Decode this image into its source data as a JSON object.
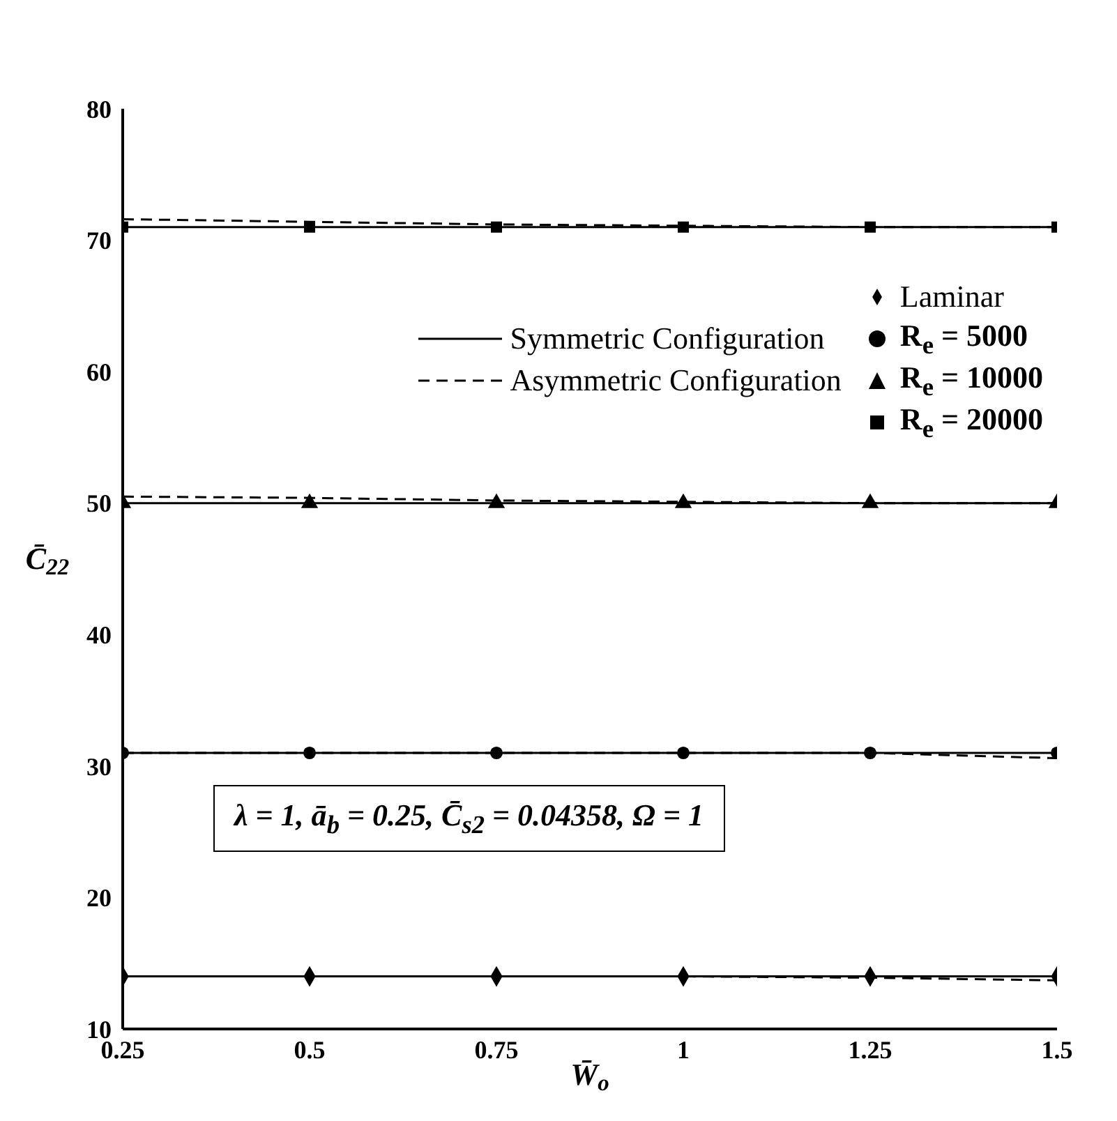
{
  "chart_data": {
    "type": "line",
    "xlabel": "W̄$_{o}$",
    "ylabel": "C̄$_{22}$",
    "x": [
      0.25,
      0.5,
      0.75,
      1,
      1.25,
      1.5
    ],
    "xlim": [
      0.25,
      1.5
    ],
    "xticks": [
      0.25,
      0.5,
      0.75,
      1,
      1.25,
      1.5
    ],
    "ylim": [
      10,
      80
    ],
    "yticks": [
      10,
      20,
      30,
      40,
      50,
      60,
      70,
      80
    ],
    "grid": false,
    "legend": "top right",
    "series": [
      {
        "name": "Symmetric Configuration",
        "color": "#000000",
        "line_style": "solid",
        "values": [
          14,
          14,
          14,
          14,
          14,
          14
        ]
      },
      {
        "color": "#000000",
        "line_style": "solid",
        "values": [
          31,
          31,
          31,
          31,
          31,
          31
        ]
      },
      {
        "color": "#000000",
        "line_style": "solid",
        "values": [
          50,
          50,
          50,
          50,
          50,
          50
        ]
      },
      {
        "color": "#000000",
        "line_style": "solid",
        "values": [
          71,
          71,
          71,
          71,
          71,
          71
        ]
      },
      {
        "name": "Asymmetric Configuration",
        "color": "#000000",
        "line_style": "dashed",
        "values": [
          14,
          14,
          14,
          14,
          13.9,
          13.7
        ]
      },
      {
        "color": "#000000",
        "line_style": "dashed",
        "values": [
          31,
          31,
          31,
          31,
          31,
          30.6
        ]
      },
      {
        "color": "#000000",
        "line_style": "dashed",
        "values": [
          50.5,
          50.4,
          50.2,
          50.1,
          50,
          50
        ]
      },
      {
        "color": "#000000",
        "line_style": "dashed",
        "values": [
          71.6,
          71.4,
          71.2,
          71.1,
          71,
          71
        ]
      },
      {
        "name": "Laminar",
        "type": "scatter",
        "marker": "diamond",
        "color": "#000000",
        "values": [
          14,
          14,
          14,
          14,
          14,
          14
        ]
      },
      {
        "name": "R$_{e}$ = 5000",
        "type": "scatter",
        "marker": "circle",
        "color": "#000000",
        "values": [
          31,
          31,
          31,
          31,
          31,
          31
        ]
      },
      {
        "name": "R$_{e}$ = 10000",
        "type": "scatter",
        "marker": "triangle",
        "color": "#000000",
        "values": [
          50,
          50,
          50,
          50,
          50,
          50
        ]
      },
      {
        "name": "R$_{e}$ = 20000",
        "type": "scatter",
        "marker": "square",
        "color": "#000000",
        "values": [
          71,
          71,
          71,
          71,
          71,
          71
        ]
      }
    ],
    "annotations": [
      "λ = 1, ā$_{b}$ = 0.25, C̄$_{s2}$ = 0.04358, Ω = 1"
    ]
  }
}
